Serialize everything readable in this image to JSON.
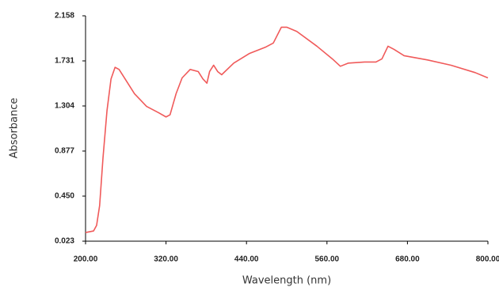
{
  "chart_data": {
    "type": "line",
    "x_label": "Wavelength (nm)",
    "y_label": "Absorbance",
    "x": [
      200,
      212,
      216.5,
      221,
      226,
      232,
      238,
      244,
      250,
      259,
      273,
      291,
      309,
      320,
      326,
      335,
      344,
      356,
      368,
      375,
      381,
      385,
      391,
      397,
      403,
      421,
      444,
      468,
      480,
      492,
      500,
      515,
      545,
      568,
      580,
      592,
      616,
      633,
      642,
      651,
      660,
      675,
      710,
      745,
      781,
      800
    ],
    "series": [
      {
        "color": "#f05a5a",
        "values": [
          0.105,
          0.12,
          0.173,
          0.36,
          0.81,
          1.26,
          1.56,
          1.67,
          1.65,
          1.56,
          1.42,
          1.3,
          1.24,
          1.2,
          1.22,
          1.42,
          1.57,
          1.65,
          1.63,
          1.56,
          1.52,
          1.63,
          1.69,
          1.63,
          1.6,
          1.71,
          1.8,
          1.86,
          1.9,
          2.05,
          2.05,
          2.01,
          1.87,
          1.75,
          1.68,
          1.71,
          1.72,
          1.72,
          1.75,
          1.87,
          1.84,
          1.78,
          1.74,
          1.69,
          1.62,
          1.57
        ]
      }
    ],
    "xlim": [
      200,
      800
    ],
    "xticks": [
      {
        "value": 200,
        "label": "200.00"
      },
      {
        "value": 320,
        "label": "320.00"
      },
      {
        "value": 440,
        "label": "440.00"
      },
      {
        "value": 560,
        "label": "560.00"
      },
      {
        "value": 680,
        "label": "680.00"
      },
      {
        "value": 800,
        "label": "800.00"
      }
    ],
    "ylim": [
      0.023,
      2.158
    ],
    "yticks": [
      0.023,
      {
        "value": 0.45,
        "label": "0.450"
      },
      0.877,
      1.304,
      1.731,
      2.158
    ]
  }
}
